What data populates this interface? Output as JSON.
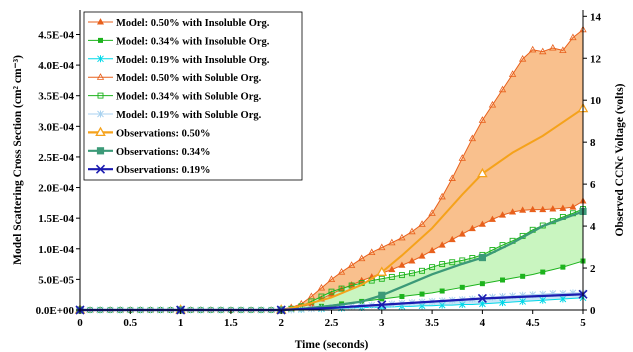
{
  "chart_data": {
    "type": "line",
    "xlabel": "Time (seconds)",
    "ylabel": "Model Scattering Cross Section (cm² cm⁻³)",
    "y2label": "Observed CCNc Voltage (volts)",
    "xlim": [
      0,
      5
    ],
    "ylim": [
      0,
      0.00049
    ],
    "y2lim": [
      0,
      14.3
    ],
    "x_ticks": [
      0,
      0.5,
      1,
      1.5,
      2,
      2.5,
      3,
      3.5,
      4,
      4.5,
      5
    ],
    "x_tick_labels": [
      "0",
      "0.5",
      "1",
      "1.5",
      "2",
      "2.5",
      "3",
      "3.5",
      "4",
      "4.5",
      "5"
    ],
    "y_ticks": [
      0,
      5e-05,
      0.0001,
      0.00015,
      0.0002,
      0.00025,
      0.0003,
      0.00035,
      0.0004,
      0.00045
    ],
    "y_tick_labels": [
      "0.0E+00",
      "5.0E-05",
      "1.0E-04",
      "1.5E-04",
      "2.0E-04",
      "2.5E-04",
      "3.0E-04",
      "3.5E-04",
      "4.0E-04",
      "4.5E-04"
    ],
    "y2_ticks": [
      0,
      2,
      4,
      6,
      8,
      10,
      12,
      14
    ],
    "y2_tick_labels": [
      "0",
      "2",
      "4",
      "6",
      "8",
      "10",
      "12",
      "14"
    ],
    "grid": false,
    "legend_position": "top-left",
    "fills": [
      {
        "between": [
          "Model: 0.50% with Insoluble Org.",
          "Model: 0.50% with Soluble Org."
        ],
        "color": "#f9c08d"
      },
      {
        "between": [
          "Model: 0.34% with Insoluble Org.",
          "Model: 0.34% with Soluble Org."
        ],
        "color": "#c9f5c0"
      },
      {
        "between": [
          "Model: 0.19% with Insoluble Org.",
          "Model: 0.19% with Soluble Org."
        ],
        "color": "#c8e6f7"
      }
    ],
    "series": [
      {
        "name": "Model: 0.50% with Insoluble Org.",
        "axis": "left",
        "color": "#e8601c",
        "marker": "triangle-filled",
        "markevery": 1,
        "x": [
          0,
          0.1,
          0.2,
          0.3,
          0.4,
          0.5,
          0.6,
          0.7,
          0.8,
          0.9,
          1,
          1.1,
          1.2,
          1.3,
          1.4,
          1.5,
          1.6,
          1.7,
          1.8,
          1.9,
          2,
          2.1,
          2.2,
          2.3,
          2.4,
          2.5,
          2.6,
          2.7,
          2.8,
          2.9,
          3,
          3.1,
          3.2,
          3.3,
          3.4,
          3.5,
          3.6,
          3.7,
          3.8,
          3.9,
          4,
          4.1,
          4.2,
          4.3,
          4.4,
          4.5,
          4.6,
          4.7,
          4.8,
          4.9,
          5
        ],
        "y": [
          0,
          0,
          0,
          0,
          0,
          0,
          0,
          0,
          0,
          0,
          0,
          0,
          0,
          0,
          0,
          0,
          0,
          0,
          0,
          0,
          0,
          2e-06,
          5e-06,
          1e-05,
          1.8e-05,
          2.6e-05,
          3.4e-05,
          4.1e-05,
          4.8e-05,
          5.4e-05,
          6e-05,
          6.6e-05,
          7.3e-05,
          8e-05,
          8.8e-05,
          9.7e-05,
          0.000106,
          0.000115,
          0.000124,
          0.000133,
          0.00014,
          0.000148,
          0.000155,
          0.00016,
          0.000163,
          0.000164,
          0.000164,
          0.000165,
          0.000166,
          0.000168,
          0.000178
        ]
      },
      {
        "name": "Model: 0.34% with Insoluble Org.",
        "axis": "left",
        "color": "#1db31d",
        "marker": "square-filled",
        "markevery": 2,
        "x": [
          0,
          0.1,
          0.2,
          0.3,
          0.4,
          0.5,
          0.6,
          0.7,
          0.8,
          0.9,
          1,
          1.1,
          1.2,
          1.3,
          1.4,
          1.5,
          1.6,
          1.7,
          1.8,
          1.9,
          2,
          2.1,
          2.2,
          2.3,
          2.4,
          2.5,
          2.6,
          2.7,
          2.8,
          2.9,
          3,
          3.1,
          3.2,
          3.3,
          3.4,
          3.5,
          3.6,
          3.7,
          3.8,
          3.9,
          4,
          4.1,
          4.2,
          4.3,
          4.4,
          4.5,
          4.6,
          4.7,
          4.8,
          4.9,
          5
        ],
        "y": [
          0,
          0,
          0,
          0,
          0,
          0,
          0,
          0,
          0,
          0,
          0,
          0,
          0,
          0,
          0,
          0,
          0,
          0,
          0,
          0,
          0,
          1e-06,
          2e-06,
          4e-06,
          6e-06,
          8e-06,
          1e-05,
          1.2e-05,
          1.4e-05,
          1.6e-05,
          1.8e-05,
          2e-05,
          2.2e-05,
          2.4e-05,
          2.6e-05,
          2.8e-05,
          3.1e-05,
          3.4e-05,
          3.7e-05,
          4e-05,
          4.3e-05,
          4.6e-05,
          4.9e-05,
          5.2e-05,
          5.5e-05,
          5.8e-05,
          6.2e-05,
          6.6e-05,
          7e-05,
          7.5e-05,
          8e-05
        ]
      },
      {
        "name": "Model: 0.19% with Insoluble Org.",
        "axis": "left",
        "color": "#00d8e8",
        "marker": "asterisk",
        "markevery": 2,
        "x": [
          0,
          0.1,
          0.2,
          0.3,
          0.4,
          0.5,
          0.6,
          0.7,
          0.8,
          0.9,
          1,
          1.1,
          1.2,
          1.3,
          1.4,
          1.5,
          1.6,
          1.7,
          1.8,
          1.9,
          2,
          2.1,
          2.2,
          2.3,
          2.4,
          2.5,
          2.6,
          2.7,
          2.8,
          2.9,
          3,
          3.1,
          3.2,
          3.3,
          3.4,
          3.5,
          3.6,
          3.7,
          3.8,
          3.9,
          4,
          4.1,
          4.2,
          4.3,
          4.4,
          4.5,
          4.6,
          4.7,
          4.8,
          4.9,
          5
        ],
        "y": [
          0,
          0,
          0,
          0,
          0,
          0,
          0,
          0,
          0,
          0,
          0,
          0,
          0,
          0,
          0,
          0,
          0,
          0,
          0,
          0,
          0,
          0,
          1e-06,
          1e-06,
          2e-06,
          2e-06,
          3e-06,
          3e-06,
          4e-06,
          4e-06,
          5e-06,
          5e-06,
          6e-06,
          6e-06,
          7e-06,
          7e-06,
          8e-06,
          8e-06,
          9e-06,
          9e-06,
          1e-05,
          1.1e-05,
          1.2e-05,
          1.3e-05,
          1.4e-05,
          1.5e-05,
          1.6e-05,
          1.7e-05,
          1.8e-05,
          1.9e-05,
          2e-05
        ]
      },
      {
        "name": "Model: 0.50% with Soluble Org.",
        "axis": "left",
        "color": "#e8601c",
        "marker": "triangle-open",
        "markevery": 1,
        "x": [
          0,
          0.1,
          0.2,
          0.3,
          0.4,
          0.5,
          0.6,
          0.7,
          0.8,
          0.9,
          1,
          1.1,
          1.2,
          1.3,
          1.4,
          1.5,
          1.6,
          1.7,
          1.8,
          1.9,
          2,
          2.1,
          2.2,
          2.3,
          2.4,
          2.5,
          2.6,
          2.7,
          2.8,
          2.9,
          3,
          3.1,
          3.2,
          3.3,
          3.4,
          3.5,
          3.6,
          3.7,
          3.8,
          3.9,
          4,
          4.1,
          4.2,
          4.3,
          4.4,
          4.5,
          4.6,
          4.7,
          4.8,
          4.9,
          5
        ],
        "y": [
          0,
          0,
          0,
          0,
          0,
          0,
          0,
          0,
          0,
          0,
          0,
          0,
          0,
          0,
          0,
          0,
          0,
          0,
          0,
          0,
          1e-06,
          4e-06,
          1e-05,
          2.2e-05,
          3.6e-05,
          5e-05,
          6.2e-05,
          7.3e-05,
          8.4e-05,
          9.4e-05,
          0.000102,
          0.00011,
          0.000118,
          0.000128,
          0.00014,
          0.000158,
          0.000185,
          0.000215,
          0.000248,
          0.00028,
          0.00031,
          0.000335,
          0.00036,
          0.000385,
          0.00041,
          0.000425,
          0.000422,
          0.000428,
          0.000424,
          0.000445,
          0.000458
        ]
      },
      {
        "name": "Model: 0.34% with Soluble Org.",
        "axis": "left",
        "color": "#1db31d",
        "marker": "square-open",
        "markevery": 1,
        "x": [
          0,
          0.1,
          0.2,
          0.3,
          0.4,
          0.5,
          0.6,
          0.7,
          0.8,
          0.9,
          1,
          1.1,
          1.2,
          1.3,
          1.4,
          1.5,
          1.6,
          1.7,
          1.8,
          1.9,
          2,
          2.1,
          2.2,
          2.3,
          2.4,
          2.5,
          2.6,
          2.7,
          2.8,
          2.9,
          3,
          3.1,
          3.2,
          3.3,
          3.4,
          3.5,
          3.6,
          3.7,
          3.8,
          3.9,
          4,
          4.1,
          4.2,
          4.3,
          4.4,
          4.5,
          4.6,
          4.7,
          4.8,
          4.9,
          5
        ],
        "y": [
          0,
          0,
          0,
          0,
          0,
          0,
          0,
          0,
          0,
          0,
          0,
          0,
          0,
          0,
          0,
          0,
          0,
          0,
          0,
          0,
          0,
          2e-06,
          6e-06,
          1.4e-05,
          2.2e-05,
          3e-05,
          3.5e-05,
          4e-05,
          4.4e-05,
          4.8e-05,
          5.1e-05,
          5.4e-05,
          5.7e-05,
          6e-05,
          6.4e-05,
          7e-05,
          7.5e-05,
          7.8e-05,
          8.1e-05,
          8.5e-05,
          9e-05,
          9.8e-05,
          0.000106,
          0.000113,
          0.000121,
          0.000131,
          0.000138,
          0.000145,
          0.000152,
          0.000158,
          0.000165
        ]
      },
      {
        "name": "Model: 0.19% with Soluble Org.",
        "axis": "left",
        "color": "#a8d2f0",
        "marker": "asterisk",
        "markevery": 1,
        "x": [
          0,
          0.1,
          0.2,
          0.3,
          0.4,
          0.5,
          0.6,
          0.7,
          0.8,
          0.9,
          1,
          1.1,
          1.2,
          1.3,
          1.4,
          1.5,
          1.6,
          1.7,
          1.8,
          1.9,
          2,
          2.1,
          2.2,
          2.3,
          2.4,
          2.5,
          2.6,
          2.7,
          2.8,
          2.9,
          3,
          3.1,
          3.2,
          3.3,
          3.4,
          3.5,
          3.6,
          3.7,
          3.8,
          3.9,
          4,
          4.1,
          4.2,
          4.3,
          4.4,
          4.5,
          4.6,
          4.7,
          4.8,
          4.9,
          5
        ],
        "y": [
          0,
          0,
          0,
          0,
          0,
          0,
          0,
          0,
          0,
          0,
          0,
          0,
          0,
          0,
          0,
          0,
          0,
          0,
          0,
          0,
          0,
          0,
          1e-06,
          2e-06,
          3e-06,
          4e-06,
          5e-06,
          6e-06,
          7e-06,
          8e-06,
          9e-06,
          1e-05,
          1.1e-05,
          1.2e-05,
          1.3e-05,
          1.4e-05,
          1.5e-05,
          1.6e-05,
          1.7e-05,
          1.8e-05,
          2e-05,
          2.1e-05,
          2.2e-05,
          2.3e-05,
          2.4e-05,
          2.5e-05,
          2.6e-05,
          2.7e-05,
          2.7e-05,
          2.8e-05,
          2.8e-05
        ]
      },
      {
        "name": "Observations: 0.50%",
        "axis": "right",
        "color": "#f5a21b",
        "marker": "triangle-open-large",
        "marker_x": [
          0,
          1,
          2,
          3,
          4,
          5
        ],
        "x": [
          0,
          0.5,
          1,
          1.5,
          2,
          2.2,
          2.5,
          2.8,
          3,
          3.2,
          3.5,
          3.8,
          4,
          4.3,
          4.6,
          5
        ],
        "y": [
          0,
          0,
          0,
          0,
          0,
          0.2,
          0.6,
          1.2,
          1.8,
          2.6,
          3.9,
          5.5,
          6.5,
          7.5,
          8.3,
          9.6
        ]
      },
      {
        "name": "Observations: 0.34%",
        "axis": "right",
        "color": "#3c9a78",
        "marker": "square-filled-large",
        "marker_x": [
          0,
          1,
          2,
          3,
          4,
          5
        ],
        "x": [
          0,
          0.5,
          1,
          1.5,
          2,
          2.2,
          2.5,
          2.8,
          3,
          3.2,
          3.5,
          3.8,
          4,
          4.3,
          4.6,
          5
        ],
        "y": [
          0,
          0,
          0,
          0,
          0,
          0.05,
          0.2,
          0.4,
          0.7,
          1.1,
          1.7,
          2.2,
          2.5,
          3.2,
          4.0,
          4.7
        ]
      },
      {
        "name": "Observations: 0.19%",
        "axis": "right",
        "color": "#1b1bb0",
        "marker": "x",
        "marker_x": [
          0,
          1,
          2,
          3,
          4,
          5
        ],
        "x": [
          0,
          0.5,
          1,
          1.5,
          2,
          2.5,
          3,
          3.5,
          4,
          4.5,
          5
        ],
        "y": [
          0,
          0,
          0,
          0,
          0,
          0.1,
          0.25,
          0.4,
          0.55,
          0.65,
          0.75
        ]
      }
    ]
  }
}
